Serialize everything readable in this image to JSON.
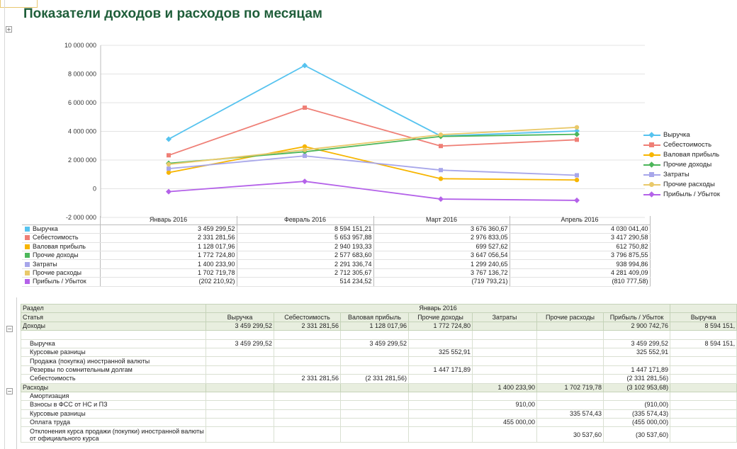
{
  "title": "Показатели доходов и расходов по месяцам",
  "chart_data": {
    "type": "line",
    "categories": [
      "Январь 2016",
      "Февраль 2016",
      "Март 2016",
      "Апрель 2016"
    ],
    "ylim": [
      -2000000,
      10000000
    ],
    "yticks": [
      "10 000 000",
      "8 000 000",
      "6 000 000",
      "4 000 000",
      "2 000 000",
      "0",
      "-2 000 000"
    ],
    "ytick_values": [
      10000000,
      8000000,
      6000000,
      4000000,
      2000000,
      0,
      -2000000
    ],
    "grid": true,
    "legend_position": "right",
    "series": [
      {
        "name": "Выручка",
        "color": "#56c3ef",
        "marker": "diamond",
        "values": [
          3459299.52,
          8594151.21,
          3676360.67,
          4030041.4
        ],
        "labels": [
          "3 459 299,52",
          "8 594 151,21",
          "3 676 360,67",
          "4 030 041,40"
        ]
      },
      {
        "name": "Себестоимость",
        "color": "#ef7f76",
        "marker": "square",
        "values": [
          2331281.56,
          5653957.88,
          2976833.05,
          3417290.58
        ],
        "labels": [
          "2 331 281,56",
          "5 653 957,88",
          "2 976 833,05",
          "3 417 290,58"
        ]
      },
      {
        "name": "Валовая прибыль",
        "color": "#f7b500",
        "marker": "circle",
        "values": [
          1128017.96,
          2940193.33,
          699527.62,
          612750.82
        ],
        "labels": [
          "1 128 017,96",
          "2 940 193,33",
          "699 527,62",
          "612 750,82"
        ]
      },
      {
        "name": "Прочие доходы",
        "color": "#4cb65a",
        "marker": "diamond",
        "values": [
          1772724.8,
          2577683.6,
          3647056.54,
          3796875.55
        ],
        "labels": [
          "1 772 724,80",
          "2 577 683,60",
          "3 647 056,54",
          "3 796 875,55"
        ]
      },
      {
        "name": "Затраты",
        "color": "#a7a6ea",
        "marker": "square",
        "values": [
          1400233.9,
          2291336.74,
          1299240.65,
          938994.86
        ],
        "labels": [
          "1 400 233,90",
          "2 291 336,74",
          "1 299 240,65",
          "938 994,86"
        ]
      },
      {
        "name": "Прочие расходы",
        "color": "#e9c96a",
        "marker": "circle",
        "values": [
          1702719.78,
          2712305.67,
          3767136.72,
          4281409.09
        ],
        "labels": [
          "1 702 719,78",
          "2 712 305,67",
          "3 767 136,72",
          "4 281 409,09"
        ]
      },
      {
        "name": "Прибыль / Убыток",
        "color": "#b462e9",
        "marker": "diamond",
        "values": [
          -202210.92,
          514234.52,
          -719793.21,
          -810777.58
        ],
        "labels": [
          "(202 210,92)",
          "514 234,52",
          "(719 793,21)",
          "(810 777,58)"
        ]
      }
    ]
  },
  "report": {
    "col_section": "Раздел",
    "col_article": "Статья",
    "period_january": "Январь 2016",
    "columns": [
      "Выручка",
      "Себестоимость",
      "Валовая прибыль",
      "Прочие доходы",
      "Затраты",
      "Прочие расходы",
      "Прибыль / Убыток",
      "Выручка"
    ],
    "rows": [
      {
        "kind": "grp",
        "label": "Доходы",
        "cells": [
          "3 459 299,52",
          "2 331 281,56",
          "1 128 017,96",
          "1 772 724,80",
          "",
          "",
          "2 900 742,76",
          "8 594 151,"
        ]
      },
      {
        "kind": "blank",
        "label": "",
        "cells": [
          "",
          "",
          "",
          "",
          "",
          "",
          "",
          ""
        ]
      },
      {
        "kind": "item",
        "label": "Выручка",
        "cells": [
          "3 459 299,52",
          "",
          "3 459 299,52",
          "",
          "",
          "",
          "3 459 299,52",
          "8 594 151,"
        ]
      },
      {
        "kind": "item",
        "label": "Курсовые разницы",
        "cells": [
          "",
          "",
          "",
          "325 552,91",
          "",
          "",
          "325 552,91",
          ""
        ]
      },
      {
        "kind": "item",
        "label": "Продажа (покупка) иностранной валюты",
        "cells": [
          "",
          "",
          "",
          "",
          "",
          "",
          "",
          ""
        ]
      },
      {
        "kind": "item",
        "label": "Резервы по сомнительным долгам",
        "cells": [
          "",
          "",
          "",
          "1 447 171,89",
          "",
          "",
          "1 447 171,89",
          ""
        ]
      },
      {
        "kind": "item",
        "label": "Себестоимость",
        "cells": [
          "",
          "2 331 281,56",
          "(2 331 281,56)",
          "",
          "",
          "",
          "(2 331 281,56)",
          ""
        ]
      },
      {
        "kind": "grp",
        "label": "Расходы",
        "cells": [
          "",
          "",
          "",
          "",
          "1 400 233,90",
          "1 702 719,78",
          "(3 102 953,68)",
          ""
        ]
      },
      {
        "kind": "item",
        "label": "Амортизация",
        "cells": [
          "",
          "",
          "",
          "",
          "",
          "",
          "",
          ""
        ]
      },
      {
        "kind": "item",
        "label": "Взносы в ФСС от НС и ПЗ",
        "cells": [
          "",
          "",
          "",
          "",
          "910,00",
          "",
          "(910,00)",
          ""
        ]
      },
      {
        "kind": "item",
        "label": "Курсовые разницы",
        "cells": [
          "",
          "",
          "",
          "",
          "",
          "335 574,43",
          "(335 574,43)",
          ""
        ]
      },
      {
        "kind": "item",
        "label": "Оплата труда",
        "cells": [
          "",
          "",
          "",
          "",
          "455 000,00",
          "",
          "(455 000,00)",
          ""
        ]
      },
      {
        "kind": "tall",
        "label": "Отклонения курса продажи (покупки) иностранной валюты от официального курса",
        "cells": [
          "",
          "",
          "",
          "",
          "",
          "30 537,60",
          "(30 537,60)",
          ""
        ]
      }
    ]
  }
}
